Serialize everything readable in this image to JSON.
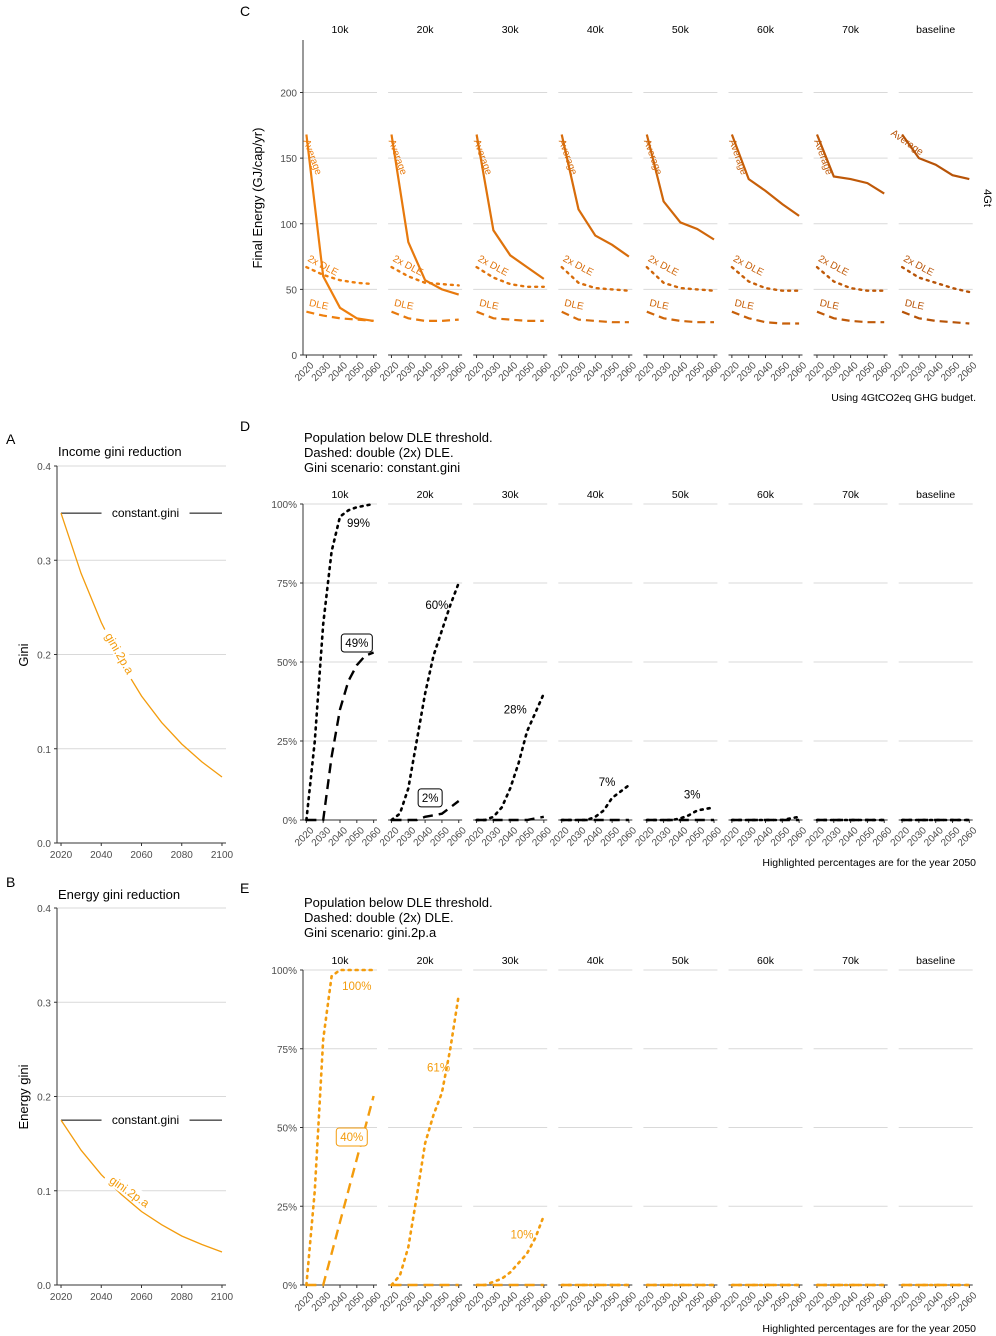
{
  "colors": {
    "gini2pa": "#F39C0D",
    "line": "#000000",
    "grid": "#d9d9d9",
    "axis": "#333333",
    "tick_label": "#4d4d4d",
    "c_panel": [
      "#EE7F0E",
      "#E7790D",
      "#DF730C",
      "#D76C0B",
      "#CF660A",
      "#C75F09",
      "#BF5908",
      "#B75307"
    ]
  },
  "panel_labels": {
    "a": "A",
    "b": "B",
    "c": "C",
    "d": "D",
    "e": "E"
  },
  "panel_a": {
    "title": "Income gini reduction",
    "ylabel": "Gini",
    "x_ticks": [
      "2020",
      "2040",
      "2060",
      "2080",
      "2100"
    ],
    "y_ticks": [
      "0.0",
      "0.1",
      "0.2",
      "0.3",
      "0.4"
    ],
    "constant_label": "constant.gini",
    "curve_label": "gini.2p.a"
  },
  "panel_b": {
    "title": "Energy gini reduction",
    "ylabel": "Energy gini",
    "x_ticks": [
      "2020",
      "2040",
      "2060",
      "2080",
      "2100"
    ],
    "y_ticks": [
      "0.0",
      "0.1",
      "0.2",
      "0.3",
      "0.4"
    ],
    "constant_label": "constant.gini",
    "curve_label": "gini.2p.a"
  },
  "panel_c": {
    "ylabel": "Final Energy (GJ/cap/yr)",
    "caption": "Using 4GtCO2eq GHG budget.",
    "strip_right": "4Gt",
    "facets": [
      "10k",
      "20k",
      "30k",
      "40k",
      "50k",
      "60k",
      "70k",
      "baseline"
    ],
    "x_ticks": [
      "2020",
      "2030",
      "2040",
      "2050",
      "2060"
    ],
    "y_ticks": [
      "0",
      "50",
      "100",
      "150",
      "200"
    ],
    "labels": {
      "average": "Average",
      "dle2x": "2x DLE",
      "dle": "DLE"
    }
  },
  "panel_d": {
    "title_lines": [
      "Population below DLE threshold.",
      "Dashed: double (2x) DLE.",
      "Gini scenario: constant.gini"
    ],
    "caption": "Highlighted percentages are for the year 2050",
    "facets": [
      "10k",
      "20k",
      "30k",
      "40k",
      "50k",
      "60k",
      "70k",
      "baseline"
    ],
    "x_ticks": [
      "2020",
      "2030",
      "2040",
      "2050",
      "2060"
    ],
    "y_ticks": [
      "0%",
      "25%",
      "50%",
      "75%",
      "100%"
    ],
    "annotations": [
      {
        "facet": 0,
        "text": "99%",
        "boxed": false
      },
      {
        "facet": 0,
        "text": "49%",
        "boxed": true
      },
      {
        "facet": 1,
        "text": "60%",
        "boxed": false
      },
      {
        "facet": 1,
        "text": "2%",
        "boxed": true
      },
      {
        "facet": 2,
        "text": "28%",
        "boxed": false
      },
      {
        "facet": 3,
        "text": "7%",
        "boxed": false
      },
      {
        "facet": 4,
        "text": "3%",
        "boxed": false
      }
    ]
  },
  "panel_e": {
    "title_lines": [
      "Population below DLE threshold.",
      "Dashed: double (2x) DLE.",
      "Gini scenario: gini.2p.a"
    ],
    "caption": "Highlighted percentages are for the year 2050",
    "facets": [
      "10k",
      "20k",
      "30k",
      "40k",
      "50k",
      "60k",
      "70k",
      "baseline"
    ],
    "x_ticks": [
      "2020",
      "2030",
      "2040",
      "2050",
      "2060"
    ],
    "y_ticks": [
      "0%",
      "25%",
      "50%",
      "75%",
      "100%"
    ],
    "annotations": [
      {
        "facet": 0,
        "text": "100%",
        "boxed": false
      },
      {
        "facet": 0,
        "text": "40%",
        "boxed": true
      },
      {
        "facet": 1,
        "text": "61%",
        "boxed": false
      },
      {
        "facet": 2,
        "text": "10%",
        "boxed": false
      }
    ]
  },
  "chart_data": [
    {
      "id": "A",
      "type": "line",
      "title": "Income gini reduction",
      "xlabel": "",
      "ylabel": "Gini",
      "xlim": [
        2018,
        2102
      ],
      "ylim": [
        0,
        0.4
      ],
      "x": [
        2020,
        2100
      ],
      "series": [
        {
          "name": "constant.gini",
          "x": [
            2020,
            2100
          ],
          "values": [
            0.35,
            0.35
          ]
        },
        {
          "name": "gini.2p.a",
          "x": [
            2020,
            2030,
            2040,
            2050,
            2060,
            2070,
            2080,
            2090,
            2100
          ],
          "values": [
            0.35,
            0.286,
            0.234,
            0.191,
            0.156,
            0.128,
            0.105,
            0.086,
            0.07
          ]
        }
      ]
    },
    {
      "id": "B",
      "type": "line",
      "title": "Energy gini reduction",
      "xlabel": "",
      "ylabel": "Energy gini",
      "xlim": [
        2018,
        2102
      ],
      "ylim": [
        0,
        0.4
      ],
      "series": [
        {
          "name": "constant.gini",
          "x": [
            2020,
            2100
          ],
          "values": [
            0.175,
            0.175
          ]
        },
        {
          "name": "gini.2p.a",
          "x": [
            2020,
            2030,
            2040,
            2050,
            2060,
            2070,
            2080,
            2090,
            2100
          ],
          "values": [
            0.175,
            0.143,
            0.117,
            0.096,
            0.078,
            0.064,
            0.052,
            0.043,
            0.035
          ]
        }
      ]
    },
    {
      "id": "C",
      "type": "line",
      "xlabel": "",
      "ylabel": "Final Energy (GJ/cap/yr)",
      "ylim": [
        0,
        240
      ],
      "xlim": [
        2018,
        2062
      ],
      "categories": [
        "10k",
        "20k",
        "30k",
        "40k",
        "50k",
        "60k",
        "70k",
        "baseline"
      ],
      "x": [
        2020,
        2030,
        2040,
        2050,
        2060
      ],
      "series": [
        {
          "name": "Average",
          "facets": [
            [
              168,
              60,
              36,
              28,
              26
            ],
            [
              168,
              86,
              57,
              50,
              46
            ],
            [
              168,
              95,
              76,
              67,
              58
            ],
            [
              168,
              111,
              91,
              84,
              75
            ],
            [
              168,
              117,
              101,
              96,
              88
            ],
            [
              168,
              134,
              125,
              115,
              106
            ],
            [
              168,
              136,
              134,
              131,
              123
            ],
            [
              168,
              150,
              145,
              137,
              134
            ]
          ]
        },
        {
          "name": "2x DLE",
          "facets": [
            [
              67,
              61,
              57,
              55,
              54
            ],
            [
              67,
              60,
              55,
              54,
              53
            ],
            [
              67,
              59,
              54,
              52,
              52
            ],
            [
              67,
              55,
              51,
              50,
              49
            ],
            [
              67,
              55,
              51,
              50,
              49
            ],
            [
              67,
              56,
              51,
              49,
              49
            ],
            [
              67,
              56,
              51,
              49,
              49
            ],
            [
              67,
              59,
              55,
              51,
              48
            ]
          ]
        },
        {
          "name": "DLE",
          "facets": [
            [
              33,
              30,
              28,
              27,
              26
            ],
            [
              33,
              28,
              26,
              26,
              27
            ],
            [
              33,
              28,
              27,
              26,
              26
            ],
            [
              33,
              27,
              26,
              25,
              25
            ],
            [
              33,
              28,
              26,
              25,
              25
            ],
            [
              33,
              28,
              25,
              24,
              24
            ],
            [
              33,
              28,
              26,
              25,
              25
            ],
            [
              33,
              28,
              26,
              25,
              24
            ]
          ]
        }
      ]
    },
    {
      "id": "D",
      "type": "line",
      "xlabel": "",
      "ylabel": "",
      "ylim": [
        0,
        100
      ],
      "xlim": [
        2018,
        2062
      ],
      "categories": [
        "10k",
        "20k",
        "30k",
        "40k",
        "50k",
        "60k",
        "70k",
        "baseline"
      ],
      "x": [
        2020,
        2025,
        2030,
        2035,
        2040,
        2045,
        2050,
        2055,
        2060
      ],
      "series": [
        {
          "name": "DLE threshold",
          "facets": [
            [
              0,
              0,
              0,
              20,
              35,
              44,
              49,
              52,
              53
            ],
            [
              0,
              0,
              0,
              0,
              1,
              1.5,
              2,
              4,
              6
            ],
            [
              0,
              0,
              0,
              0,
              0,
              0,
              0,
              0.5,
              1
            ],
            [
              0,
              0,
              0,
              0,
              0,
              0,
              0,
              0,
              0
            ],
            [
              0,
              0,
              0,
              0,
              0,
              0,
              0,
              0,
              0
            ],
            [
              0,
              0,
              0,
              0,
              0,
              0,
              0,
              0,
              0
            ],
            [
              0,
              0,
              0,
              0,
              0,
              0,
              0,
              0,
              0
            ],
            [
              0,
              0,
              0,
              0,
              0,
              0,
              0,
              0,
              0
            ]
          ]
        },
        {
          "name": "double (2x) DLE",
          "facets": [
            [
              0,
              25,
              62,
              85,
              96,
              98,
              99,
              99.5,
              100
            ],
            [
              0,
              2,
              10,
              25,
              40,
              52,
              60,
              68,
              75
            ],
            [
              0,
              0,
              1,
              4,
              10,
              18,
              28,
              34,
              40
            ],
            [
              0,
              0,
              0,
              0,
              1,
              3,
              7,
              9,
              11
            ],
            [
              0,
              0,
              0,
              0,
              0.5,
              1.5,
              3,
              3.5,
              4
            ],
            [
              0,
              0,
              0,
              0,
              0,
              0,
              0,
              0.5,
              1
            ],
            [
              0,
              0,
              0,
              0,
              0,
              0,
              0,
              0,
              0
            ],
            [
              0,
              0,
              0,
              0,
              0,
              0,
              0,
              0,
              0
            ]
          ]
        }
      ]
    },
    {
      "id": "E",
      "type": "line",
      "xlabel": "",
      "ylabel": "",
      "ylim": [
        0,
        100
      ],
      "xlim": [
        2018,
        2062
      ],
      "categories": [
        "10k",
        "20k",
        "30k",
        "40k",
        "50k",
        "60k",
        "70k",
        "baseline"
      ],
      "x": [
        2020,
        2025,
        2030,
        2035,
        2040,
        2045,
        2050,
        2055,
        2060
      ],
      "series": [
        {
          "name": "DLE threshold",
          "facets": [
            [
              0,
              0,
              0,
              10,
              20,
              30,
              40,
              50,
              60
            ],
            [
              0,
              0,
              0,
              0,
              0,
              0,
              0,
              0,
              0
            ],
            [
              0,
              0,
              0,
              0,
              0,
              0,
              0,
              0,
              0
            ],
            [
              0,
              0,
              0,
              0,
              0,
              0,
              0,
              0,
              0
            ],
            [
              0,
              0,
              0,
              0,
              0,
              0,
              0,
              0,
              0
            ],
            [
              0,
              0,
              0,
              0,
              0,
              0,
              0,
              0,
              0
            ],
            [
              0,
              0,
              0,
              0,
              0,
              0,
              0,
              0,
              0
            ],
            [
              0,
              0,
              0,
              0,
              0,
              0,
              0,
              0,
              0
            ]
          ]
        },
        {
          "name": "double (2x) DLE",
          "facets": [
            [
              0,
              30,
              78,
              98,
              100,
              100,
              100,
              100,
              100
            ],
            [
              0,
              3,
              12,
              28,
              45,
              54,
              61,
              75,
              92
            ],
            [
              0,
              0,
              1,
              2,
              4,
              7,
              10,
              15,
              22
            ],
            [
              0,
              0,
              0,
              0,
              0,
              0,
              0,
              0,
              0
            ],
            [
              0,
              0,
              0,
              0,
              0,
              0,
              0,
              0,
              0
            ],
            [
              0,
              0,
              0,
              0,
              0,
              0,
              0,
              0,
              0
            ],
            [
              0,
              0,
              0,
              0,
              0,
              0,
              0,
              0,
              0
            ],
            [
              0,
              0,
              0,
              0,
              0,
              0,
              0,
              0,
              0
            ]
          ]
        }
      ]
    }
  ]
}
